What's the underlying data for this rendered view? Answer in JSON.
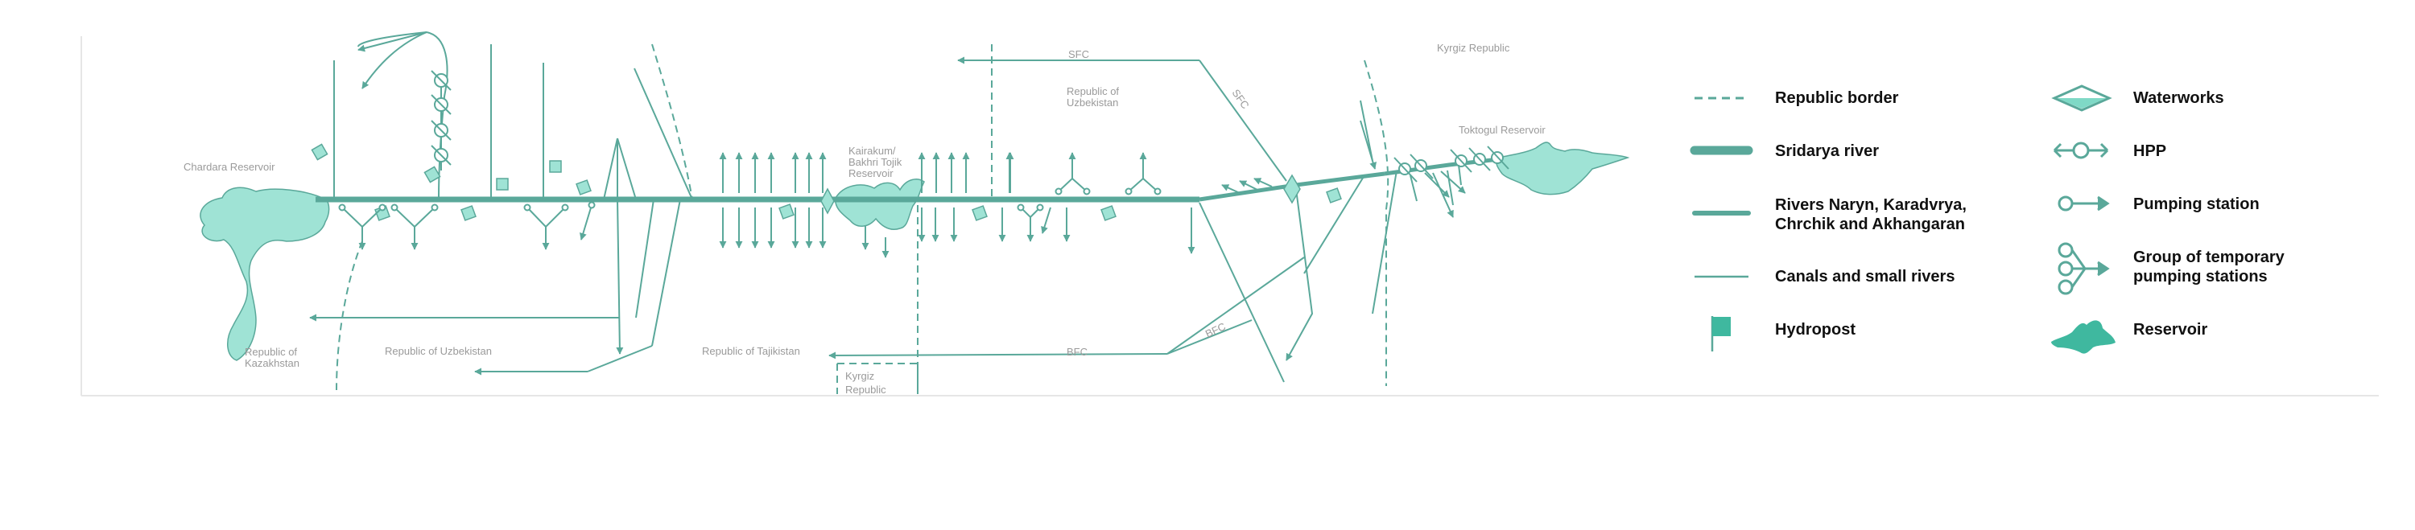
{
  "colors": {
    "river": "#5aa89a",
    "line": "#5aa89a",
    "reservoir_fill": "#9fe3d5",
    "hydropost": "#7fd9c6",
    "label": "#9a9a9a",
    "legend_text": "#111111",
    "legend_accent": "#3fb89f"
  },
  "map": {
    "labels": {
      "chardara": "Chardara Reservoir",
      "kazakhstan_1": "Republic of",
      "kazakhstan_2": "Kazakhstan",
      "uzbekistan_bottom": "Republic of Uzbekistan",
      "tajikistan": "Republic of Tajikistan",
      "kyrgyz_bottom_1": "Kyrgiz",
      "kyrgyz_bottom_2": "Republic",
      "kairakum_1": "Kairakum/",
      "kairakum_2": "Bakhri Tojik",
      "kairakum_3": "Reservoir",
      "uzbekistan_top_1": "Republic of",
      "uzbekistan_top_2": "Uzbekistan",
      "sfc_top": "SFC",
      "sfc_diag": "SFC",
      "bfc_diag": "BFC",
      "bfc": "BFC",
      "kyrgyz_top": "Kyrgiz Republic",
      "toktogul": "Toktogul Reservoir"
    }
  },
  "legend": {
    "items": [
      {
        "label_lines": [
          "Republic border"
        ],
        "icon": "dashed-border-icon"
      },
      {
        "label_lines": [
          "Sridarya river"
        ],
        "icon": "thick-river-icon"
      },
      {
        "label_lines": [
          "Rivers Naryn, Karadvrya,",
          "Chrchik and Akhangaran"
        ],
        "icon": "medium-river-icon"
      },
      {
        "label_lines": [
          "Canals and small rivers"
        ],
        "icon": "thin-line-icon"
      },
      {
        "label_lines": [
          "Hydropost"
        ],
        "icon": "flag-icon"
      },
      {
        "label_lines": [
          "Waterworks"
        ],
        "icon": "diamond-icon"
      },
      {
        "label_lines": [
          "HPP"
        ],
        "icon": "hpp-icon"
      },
      {
        "label_lines": [
          "Pumping station"
        ],
        "icon": "pump-icon"
      },
      {
        "label_lines": [
          "Group of temporary",
          "pumping stations"
        ],
        "icon": "pump-group-icon"
      },
      {
        "label_lines": [
          "Reservoir"
        ],
        "icon": "reservoir-icon"
      }
    ]
  }
}
